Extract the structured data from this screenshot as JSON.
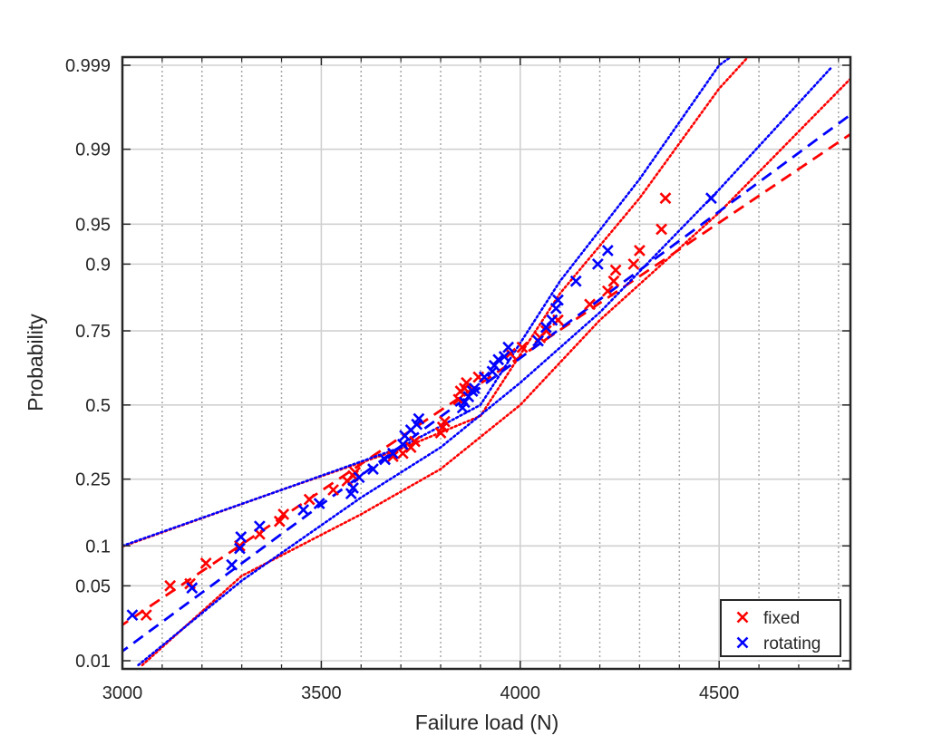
{
  "chart_data": {
    "type": "scatter",
    "title": "",
    "xlabel": "Failure load (N)",
    "ylabel": "Probability",
    "xlim": [
      3000,
      4830
    ],
    "y_scale": "probability (normal)",
    "grid": true,
    "x_major_ticks": [
      3000,
      3500,
      4000,
      4500
    ],
    "x_tick_labels": [
      "3000",
      "3500",
      "4000",
      "4500"
    ],
    "x_minor_ticks": [
      3100,
      3200,
      3300,
      3400,
      3600,
      3700,
      3800,
      3900,
      4100,
      4200,
      4300,
      4400,
      4600,
      4700,
      4800
    ],
    "y_ticks": [
      0.01,
      0.05,
      0.1,
      0.25,
      0.5,
      0.75,
      0.9,
      0.95,
      0.99,
      0.999
    ],
    "y_tick_labels": [
      "0.01",
      "0.05",
      "0.1",
      "0.25",
      "0.5",
      "0.75",
      "0.9",
      "0.95",
      "0.99",
      "0.999"
    ],
    "legend_position": "bottom-right",
    "series": [
      {
        "name": "fixed",
        "color": "#ff0000",
        "marker": "x",
        "points": [
          [
            3060,
            0.028
          ],
          [
            3120,
            0.05
          ],
          [
            3170,
            0.052
          ],
          [
            3210,
            0.075
          ],
          [
            3295,
            0.1
          ],
          [
            3345,
            0.12
          ],
          [
            3395,
            0.145
          ],
          [
            3405,
            0.16
          ],
          [
            3470,
            0.195
          ],
          [
            3530,
            0.22
          ],
          [
            3565,
            0.245
          ],
          [
            3580,
            0.26
          ],
          [
            3585,
            0.27
          ],
          [
            3680,
            0.32
          ],
          [
            3705,
            0.33
          ],
          [
            3725,
            0.35
          ],
          [
            3735,
            0.37
          ],
          [
            3800,
            0.4
          ],
          [
            3805,
            0.42
          ],
          [
            3810,
            0.44
          ],
          [
            3845,
            0.52
          ],
          [
            3850,
            0.55
          ],
          [
            3860,
            0.56
          ],
          [
            3865,
            0.58
          ],
          [
            3895,
            0.6
          ],
          [
            3975,
            0.68
          ],
          [
            4005,
            0.7
          ],
          [
            4050,
            0.73
          ],
          [
            4065,
            0.75
          ],
          [
            4095,
            0.78
          ],
          [
            4175,
            0.82
          ],
          [
            4220,
            0.85
          ],
          [
            4235,
            0.87
          ],
          [
            4240,
            0.89
          ],
          [
            4285,
            0.9
          ],
          [
            4300,
            0.92
          ],
          [
            4355,
            0.945
          ],
          [
            4365,
            0.97
          ]
        ],
        "fit": {
          "mean": 3820,
          "sd": 410
        },
        "confidence_bounds": [
          [
            [
              3000,
              0.099
            ],
            [
              3400,
              0.22
            ],
            [
              3700,
              0.345
            ],
            [
              3900,
              0.46
            ],
            [
              4100,
              0.845
            ],
            [
              4300,
              0.97
            ],
            [
              4500,
              0.998
            ],
            [
              4640,
              0.9997
            ]
          ],
          [
            [
              3050,
              0.009
            ],
            [
              3300,
              0.06
            ],
            [
              3600,
              0.16
            ],
            [
              3800,
              0.28
            ],
            [
              4000,
              0.5
            ],
            [
              4200,
              0.78
            ],
            [
              4500,
              0.96
            ],
            [
              4830,
              0.9985
            ]
          ]
        ]
      },
      {
        "name": "rotating",
        "color": "#0000ff",
        "marker": "x",
        "points": [
          [
            3025,
            0.028
          ],
          [
            3175,
            0.048
          ],
          [
            3275,
            0.073
          ],
          [
            3295,
            0.096
          ],
          [
            3298,
            0.115
          ],
          [
            3345,
            0.135
          ],
          [
            3455,
            0.17
          ],
          [
            3495,
            0.185
          ],
          [
            3575,
            0.21
          ],
          [
            3580,
            0.225
          ],
          [
            3595,
            0.255
          ],
          [
            3630,
            0.28
          ],
          [
            3660,
            0.31
          ],
          [
            3680,
            0.33
          ],
          [
            3705,
            0.36
          ],
          [
            3710,
            0.39
          ],
          [
            3725,
            0.41
          ],
          [
            3740,
            0.43
          ],
          [
            3745,
            0.45
          ],
          [
            3855,
            0.49
          ],
          [
            3860,
            0.51
          ],
          [
            3870,
            0.53
          ],
          [
            3880,
            0.55
          ],
          [
            3885,
            0.56
          ],
          [
            3910,
            0.6
          ],
          [
            3930,
            0.62
          ],
          [
            3935,
            0.64
          ],
          [
            3945,
            0.66
          ],
          [
            3960,
            0.67
          ],
          [
            3970,
            0.7
          ],
          [
            4045,
            0.72
          ],
          [
            4065,
            0.76
          ],
          [
            4080,
            0.78
          ],
          [
            4090,
            0.81
          ],
          [
            4095,
            0.83
          ],
          [
            4140,
            0.87
          ],
          [
            4195,
            0.9
          ],
          [
            4220,
            0.92
          ],
          [
            4480,
            0.97
          ]
        ],
        "fit": {
          "mean": 3840,
          "sd": 375
        },
        "confidence_bounds": [
          [
            [
              3000,
              0.1
            ],
            [
              3400,
              0.22
            ],
            [
              3700,
              0.35
            ],
            [
              3900,
              0.5
            ],
            [
              4100,
              0.87
            ],
            [
              4300,
              0.98
            ],
            [
              4500,
              0.999
            ],
            [
              4600,
              0.9996
            ]
          ],
          [
            [
              3040,
              0.009
            ],
            [
              3300,
              0.055
            ],
            [
              3600,
              0.2
            ],
            [
              3800,
              0.35
            ],
            [
              4000,
              0.58
            ],
            [
              4200,
              0.8
            ],
            [
              4500,
              0.975
            ],
            [
              4780,
              0.9989
            ]
          ]
        ]
      }
    ]
  }
}
